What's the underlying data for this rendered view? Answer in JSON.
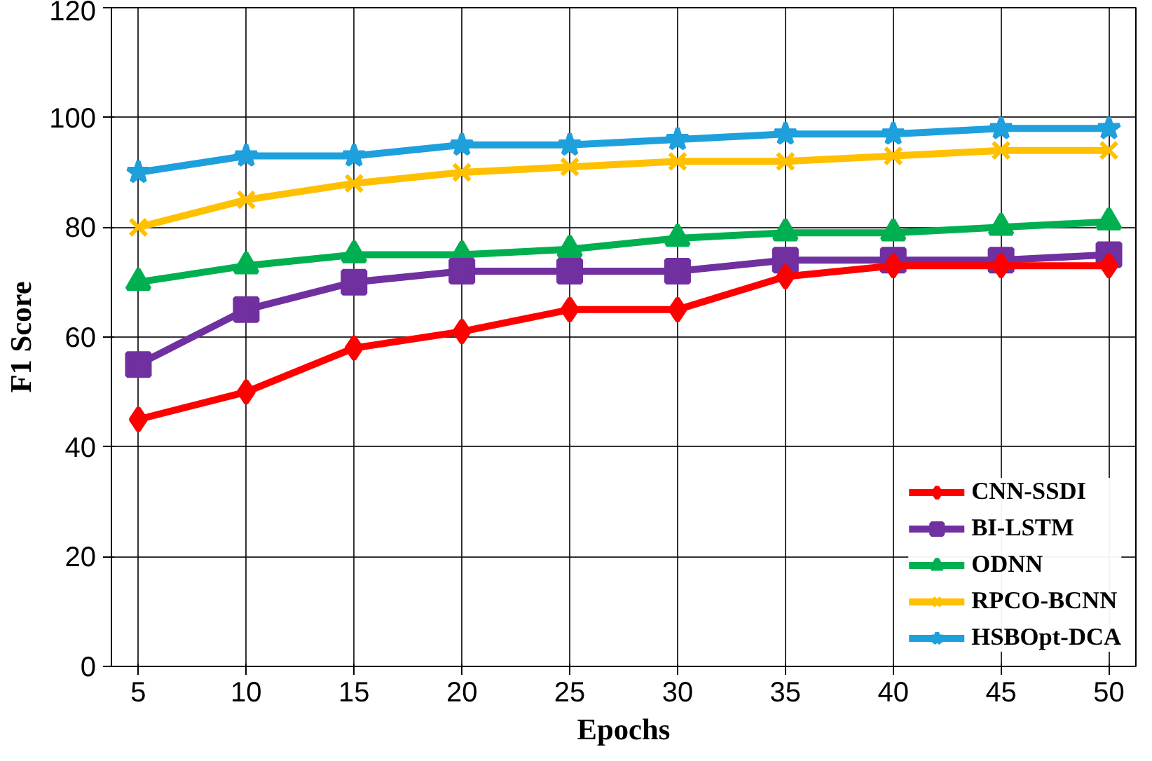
{
  "chart_data": {
    "type": "line",
    "xlabel": "Epochs",
    "ylabel": "F1 Score",
    "categories": [
      "5",
      "10",
      "15",
      "20",
      "25",
      "30",
      "35",
      "40",
      "45",
      "50"
    ],
    "ylim": [
      0,
      120
    ],
    "yticks": [
      0,
      20,
      40,
      60,
      80,
      100,
      120
    ],
    "grid": true,
    "legend": "bottom right",
    "line_style": "solid",
    "series": [
      {
        "name": "CNN-SSDI",
        "color": "#ff0000",
        "marker": "diamond",
        "values": [
          45,
          50,
          58,
          61,
          65,
          65,
          71,
          73,
          73,
          73
        ]
      },
      {
        "name": "BI-LSTM",
        "color": "#7030a0",
        "marker": "square",
        "values": [
          55,
          65,
          70,
          72,
          72,
          72,
          74,
          74,
          74,
          75
        ]
      },
      {
        "name": "ODNN",
        "color": "#00b050",
        "marker": "triangle",
        "values": [
          70,
          73,
          75,
          75,
          76,
          78,
          79,
          79,
          80,
          81
        ]
      },
      {
        "name": "RPCO-BCNN",
        "color": "#ffc000",
        "marker": "cross",
        "values": [
          80,
          85,
          88,
          90,
          91,
          92,
          92,
          93,
          94,
          94
        ]
      },
      {
        "name": "HSBOpt-DCA",
        "color": "#1ea0dc",
        "marker": "star",
        "values": [
          90,
          93,
          93,
          95,
          95,
          96,
          97,
          97,
          98,
          98
        ]
      }
    ]
  }
}
